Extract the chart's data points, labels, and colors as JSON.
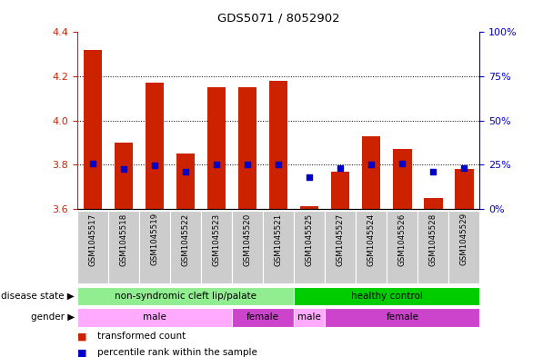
{
  "title": "GDS5071 / 8052902",
  "samples": [
    "GSM1045517",
    "GSM1045518",
    "GSM1045519",
    "GSM1045522",
    "GSM1045523",
    "GSM1045520",
    "GSM1045521",
    "GSM1045525",
    "GSM1045527",
    "GSM1045524",
    "GSM1045526",
    "GSM1045528",
    "GSM1045529"
  ],
  "bar_values": [
    4.32,
    3.9,
    4.17,
    3.85,
    4.15,
    4.15,
    4.18,
    3.61,
    3.77,
    3.93,
    3.87,
    3.65,
    3.78
  ],
  "dot_values": [
    3.805,
    3.78,
    3.795,
    3.77,
    3.8,
    3.8,
    3.8,
    3.745,
    3.785,
    3.8,
    3.805,
    3.77,
    3.785
  ],
  "ylim_left": [
    3.6,
    4.4
  ],
  "ylim_right": [
    0,
    100
  ],
  "yticks_left": [
    3.6,
    3.8,
    4.0,
    4.2,
    4.4
  ],
  "yticks_right": [
    0,
    25,
    50,
    75,
    100
  ],
  "ytick_labels_right": [
    "0%",
    "25%",
    "50%",
    "75%",
    "100%"
  ],
  "bar_color": "#cc2200",
  "dot_color": "#0000cc",
  "bar_bottom": 3.6,
  "grid_values": [
    3.8,
    4.0,
    4.2
  ],
  "disease_state_groups": [
    {
      "label": "non-syndromic cleft lip/palate",
      "start": 0,
      "end": 7,
      "color": "#90ee90"
    },
    {
      "label": "healthy control",
      "start": 7,
      "end": 13,
      "color": "#00cc00"
    }
  ],
  "gender_groups": [
    {
      "label": "male",
      "start": 0,
      "end": 5,
      "color": "#ffaaff"
    },
    {
      "label": "female",
      "start": 5,
      "end": 7,
      "color": "#cc44cc"
    },
    {
      "label": "male",
      "start": 7,
      "end": 8,
      "color": "#ffaaff"
    },
    {
      "label": "female",
      "start": 8,
      "end": 13,
      "color": "#cc44cc"
    }
  ],
  "bg_color": "#ffffff",
  "tick_color_left": "#cc2200",
  "tick_color_right": "#0000cc",
  "xticklabel_bg": "#cccccc",
  "legend_labels": [
    "transformed count",
    "percentile rank within the sample"
  ],
  "legend_colors": [
    "#cc2200",
    "#0000cc"
  ],
  "disease_label": "disease state",
  "gender_label": "gender"
}
